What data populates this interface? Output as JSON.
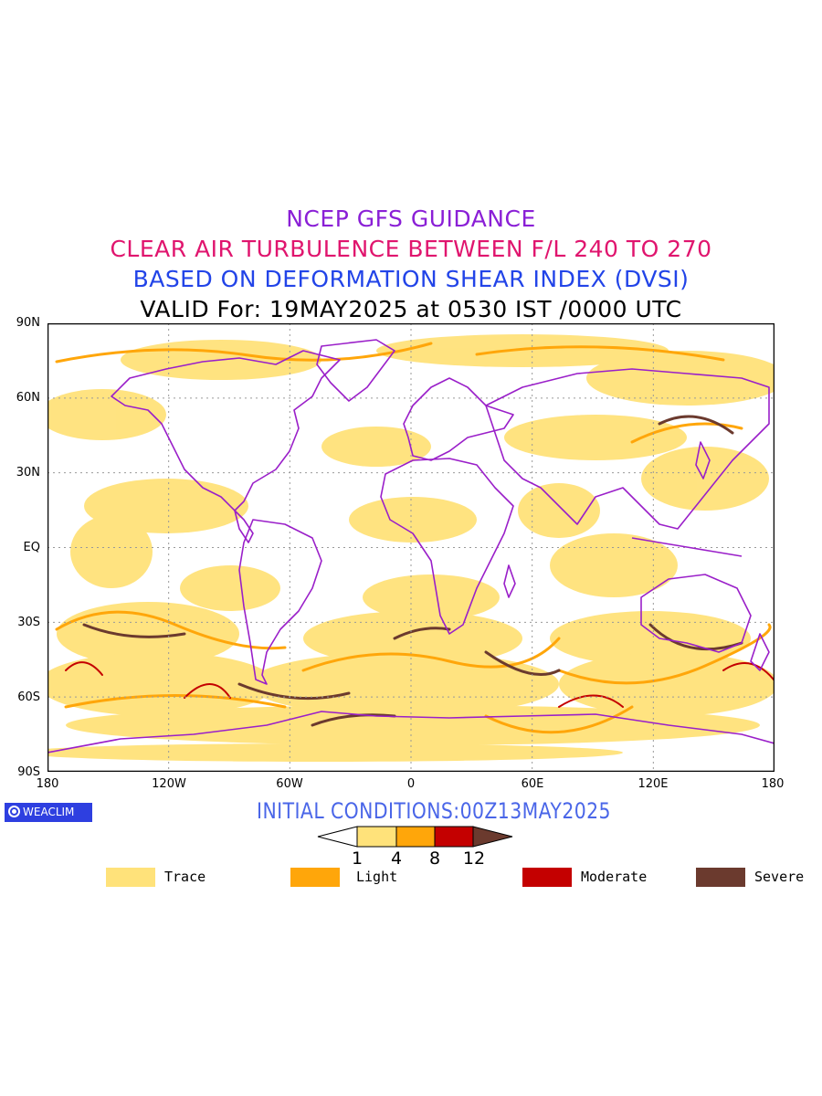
{
  "titles": {
    "line1": "NCEP GFS GUIDANCE",
    "line2": "CLEAR AIR TURBULENCE BETWEEN F/L 240 TO 270",
    "line3": "BASED ON DEFORMATION SHEAR INDEX (DVSI)",
    "line4": "VALID For: 19MAY2025 at 0530 IST /0000 UTC"
  },
  "axes": {
    "lat_labels": [
      "90N",
      "60N",
      "30N",
      "EQ",
      "30S",
      "60S",
      "90S"
    ],
    "lon_labels": [
      "180",
      "120W",
      "60W",
      "0",
      "60E",
      "120E",
      "180"
    ]
  },
  "badge": {
    "label": "WEACLIM"
  },
  "initial_conditions": "INITIAL CONDITIONS:00Z13MAY2025",
  "colorbar": {
    "ticks": [
      "1",
      "4",
      "8",
      "12"
    ],
    "colors": [
      "#ffe27a",
      "#ffa60a",
      "#c40000",
      "#6b3a2e"
    ]
  },
  "legend": [
    {
      "label": "Trace",
      "color": "#ffe27a"
    },
    {
      "label": "Light",
      "color": "#ffa60a"
    },
    {
      "label": "Moderate",
      "color": "#c40000"
    },
    {
      "label": "Severe",
      "color": "#6b3a2e"
    }
  ],
  "colors": {
    "coastline": "#9a1fc9",
    "grid": "#999999",
    "title1": "#8a1fd6",
    "title2": "#e0156e",
    "title3": "#2244e8"
  }
}
